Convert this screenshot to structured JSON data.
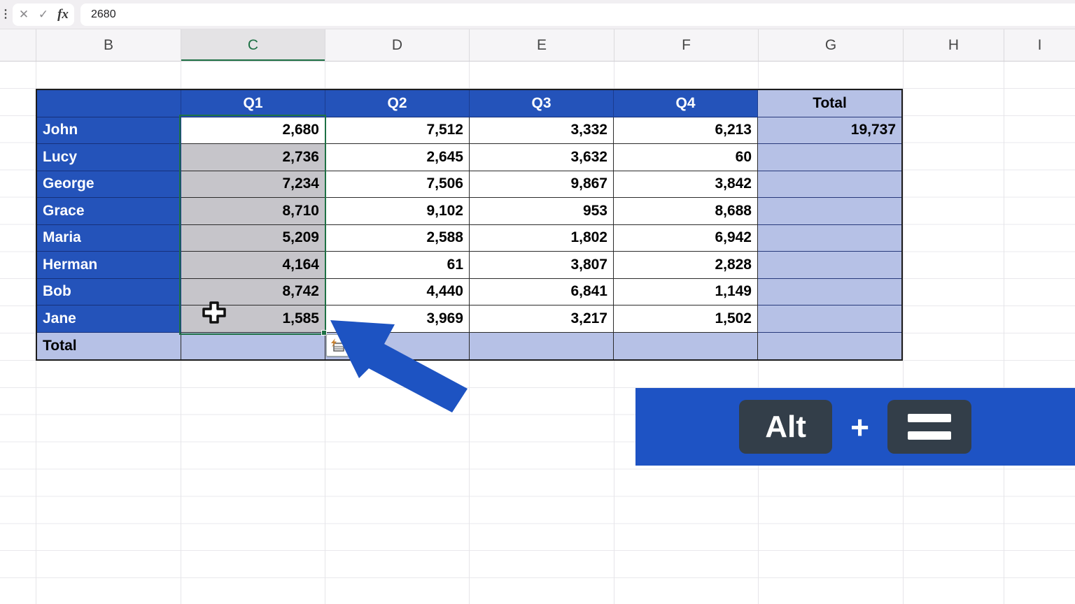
{
  "formula_bar": {
    "value": "2680",
    "fx_label": "fx",
    "cancel_glyph": "✕",
    "enter_glyph": "✓",
    "kebab_glyph": "⋮"
  },
  "sheet": {
    "column_letters": [
      "B",
      "C",
      "D",
      "E",
      "F",
      "G",
      "H",
      "I"
    ],
    "selected_column": "C"
  },
  "table": {
    "header": {
      "corner": "",
      "quarters": [
        "Q1",
        "Q2",
        "Q3",
        "Q4"
      ],
      "total_label": "Total"
    },
    "rows": [
      {
        "name": "John",
        "q1": "2,680",
        "q2": "7,512",
        "q3": "3,332",
        "q4": "6,213",
        "total": "19,737"
      },
      {
        "name": "Lucy",
        "q1": "2,736",
        "q2": "2,645",
        "q3": "3,632",
        "q4": "60",
        "total": ""
      },
      {
        "name": "George",
        "q1": "7,234",
        "q2": "7,506",
        "q3": "9,867",
        "q4": "3,842",
        "total": ""
      },
      {
        "name": "Grace",
        "q1": "8,710",
        "q2": "9,102",
        "q3": "953",
        "q4": "8,688",
        "total": ""
      },
      {
        "name": "Maria",
        "q1": "5,209",
        "q2": "2,588",
        "q3": "1,802",
        "q4": "6,942",
        "total": ""
      },
      {
        "name": "Herman",
        "q1": "4,164",
        "q2": "61",
        "q3": "3,807",
        "q4": "2,828",
        "total": ""
      },
      {
        "name": "Bob",
        "q1": "8,742",
        "q2": "4,440",
        "q3": "6,841",
        "q4": "1,149",
        "total": ""
      },
      {
        "name": "Jane",
        "q1": "1,585",
        "q2": "3,969",
        "q3": "3,217",
        "q4": "1,502",
        "total": ""
      }
    ],
    "total_row_label": "Total"
  },
  "shortcut": {
    "key1": "Alt",
    "plus": "+",
    "key2": "="
  },
  "colors": {
    "table_blue": "#2453ba",
    "lavender": "#b6c1e6",
    "selection_gray": "#c6c5ca",
    "selection_green": "#1e7145",
    "banner_blue": "#1e53c4",
    "keycap_dark": "#333e49",
    "arrow_blue": "#1d53c2"
  }
}
